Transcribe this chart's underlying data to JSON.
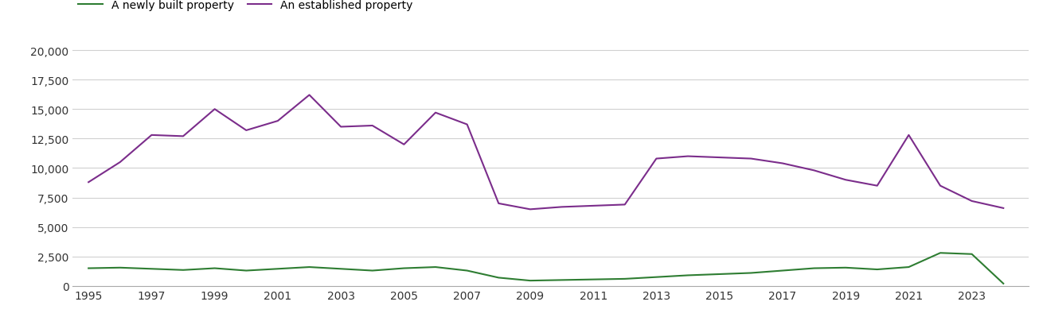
{
  "years": [
    1995,
    1996,
    1997,
    1998,
    1999,
    2000,
    2001,
    2002,
    2003,
    2004,
    2005,
    2006,
    2007,
    2008,
    2009,
    2010,
    2011,
    2012,
    2013,
    2014,
    2015,
    2016,
    2017,
    2018,
    2019,
    2020,
    2021,
    2022,
    2023,
    2024
  ],
  "new_homes": [
    1500,
    1550,
    1450,
    1350,
    1500,
    1300,
    1450,
    1600,
    1450,
    1300,
    1500,
    1600,
    1300,
    700,
    450,
    500,
    550,
    600,
    750,
    900,
    1000,
    1100,
    1300,
    1500,
    1550,
    1400,
    1600,
    2800,
    2700,
    200
  ],
  "established_homes": [
    8800,
    10500,
    12800,
    12700,
    15000,
    13200,
    14000,
    16200,
    13500,
    13600,
    12000,
    14700,
    13700,
    7000,
    6500,
    6700,
    6800,
    6900,
    10800,
    11000,
    10900,
    10800,
    10400,
    9800,
    9000,
    8500,
    12800,
    8500,
    7200,
    6600
  ],
  "new_color": "#2e7d32",
  "established_color": "#7b2d8b",
  "legend_new": "A newly built property",
  "legend_established": "An established property",
  "ylim": [
    0,
    21000
  ],
  "yticks": [
    0,
    2500,
    5000,
    7500,
    10000,
    12500,
    15000,
    17500,
    20000
  ],
  "xtick_years": [
    1995,
    1997,
    1999,
    2001,
    2003,
    2005,
    2007,
    2009,
    2011,
    2013,
    2015,
    2017,
    2019,
    2021,
    2023
  ],
  "background_color": "#ffffff",
  "grid_color": "#d0d0d0",
  "line_width": 1.5,
  "xlim_left": 1994.5,
  "xlim_right": 2024.8
}
